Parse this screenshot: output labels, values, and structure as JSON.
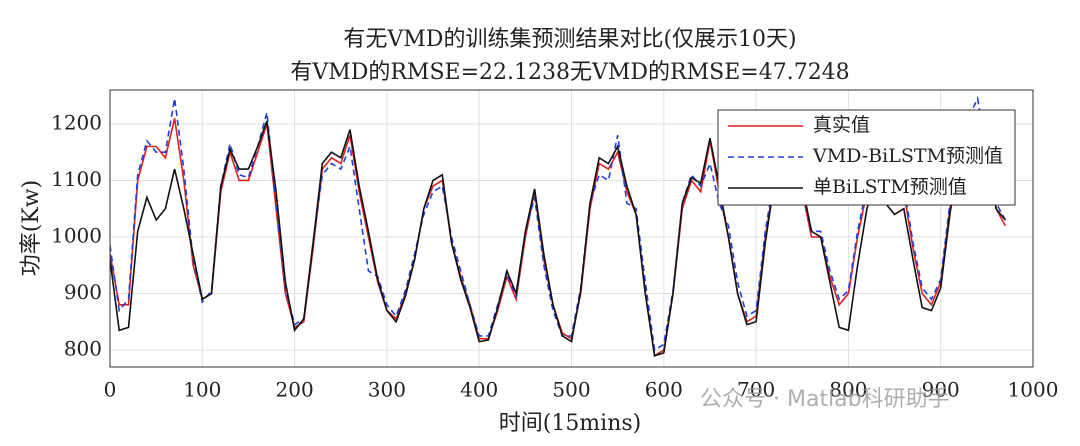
{
  "chart_data": {
    "type": "line",
    "title": "有无VMD的训练集预测结果对比(仅展示10天)",
    "subtitle": "有VMD的RMSE=22.1238无VMD的RMSE=47.7248",
    "x_label": "时间(15mins)",
    "y_label": "功率(Kw)",
    "watermark": "公众号 · Matlab科研助手",
    "xlim": [
      0,
      1000
    ],
    "ylim": [
      770,
      1260
    ],
    "xticks": [
      0,
      100,
      200,
      300,
      400,
      500,
      600,
      700,
      800,
      900,
      1000
    ],
    "yticks": [
      800,
      900,
      1000,
      1100,
      1200
    ],
    "grid": true,
    "legend": "upper right",
    "x": [
      0,
      10,
      20,
      30,
      40,
      50,
      60,
      70,
      80,
      90,
      100,
      110,
      120,
      130,
      140,
      150,
      160,
      170,
      180,
      190,
      200,
      210,
      220,
      230,
      240,
      250,
      260,
      270,
      280,
      290,
      300,
      310,
      320,
      330,
      340,
      350,
      360,
      370,
      380,
      390,
      400,
      410,
      420,
      430,
      440,
      450,
      460,
      470,
      480,
      490,
      500,
      510,
      520,
      530,
      540,
      550,
      560,
      570,
      580,
      590,
      600,
      610,
      620,
      630,
      640,
      650,
      660,
      670,
      680,
      690,
      700,
      710,
      720,
      730,
      740,
      750,
      760,
      770,
      780,
      790,
      800,
      810,
      820,
      830,
      840,
      850,
      860,
      870,
      880,
      890,
      900,
      910,
      920,
      930,
      940,
      950,
      960,
      970
    ],
    "series": [
      {
        "name": "真实值",
        "color": "#e02020",
        "dash": "solid",
        "values": [
          970,
          880,
          880,
          1100,
          1160,
          1160,
          1140,
          1210,
          1100,
          950,
          890,
          900,
          1080,
          1150,
          1100,
          1100,
          1150,
          1200,
          1050,
          900,
          840,
          850,
          980,
          1120,
          1140,
          1130,
          1180,
          1080,
          1000,
          920,
          870,
          855,
          900,
          960,
          1050,
          1090,
          1100,
          990,
          930,
          880,
          820,
          820,
          870,
          930,
          890,
          1000,
          1080,
          960,
          880,
          830,
          820,
          900,
          1050,
          1130,
          1120,
          1150,
          1080,
          1040,
          900,
          790,
          800,
          900,
          1050,
          1100,
          1080,
          1170,
          1080,
          1000,
          900,
          850,
          860,
          1000,
          1100,
          1150,
          1180,
          1080,
          1000,
          1000,
          930,
          880,
          900,
          1000,
          1080,
          1150,
          1200,
          1150,
          1080,
          980,
          900,
          880,
          920,
          1050,
          1150,
          1200,
          1220,
          1150,
          1050,
          1020
        ]
      },
      {
        "name": "VMD-BiLSTM预测值",
        "color": "#1f3fe0",
        "dash": "dashed",
        "values": [
          985,
          870,
          890,
          1110,
          1170,
          1150,
          1150,
          1245,
          1120,
          960,
          885,
          905,
          1090,
          1165,
          1110,
          1105,
          1160,
          1220,
          1060,
          910,
          845,
          855,
          990,
          1110,
          1130,
          1120,
          1160,
          1050,
          940,
          930,
          880,
          860,
          905,
          970,
          1040,
          1080,
          1090,
          1000,
          940,
          880,
          825,
          825,
          880,
          935,
          895,
          1010,
          1070,
          950,
          870,
          825,
          825,
          910,
          1060,
          1110,
          1100,
          1180,
          1060,
          1050,
          920,
          800,
          810,
          905,
          1060,
          1110,
          1090,
          1130,
          1060,
          1020,
          920,
          860,
          870,
          1010,
          1110,
          1160,
          1190,
          1090,
          1010,
          1010,
          940,
          890,
          905,
          1010,
          1090,
          1160,
          1210,
          1160,
          1090,
          990,
          910,
          890,
          925,
          1060,
          1160,
          1210,
          1245,
          1150,
          1060,
          1030
        ]
      },
      {
        "name": "单BiLSTM预测值",
        "color": "#111111",
        "dash": "solid",
        "values": [
          960,
          835,
          840,
          1010,
          1070,
          1030,
          1050,
          1120,
          1050,
          970,
          890,
          900,
          1090,
          1155,
          1120,
          1120,
          1160,
          1205,
          1080,
          920,
          835,
          855,
          990,
          1130,
          1150,
          1140,
          1190,
          1090,
          1010,
          925,
          870,
          850,
          895,
          960,
          1050,
          1100,
          1110,
          990,
          925,
          875,
          815,
          818,
          875,
          940,
          900,
          1010,
          1085,
          970,
          880,
          825,
          815,
          905,
          1060,
          1140,
          1130,
          1160,
          1090,
          1040,
          900,
          790,
          795,
          900,
          1060,
          1105,
          1095,
          1175,
          1090,
          1000,
          900,
          845,
          850,
          990,
          1100,
          1150,
          1185,
          1090,
          1010,
          1000,
          920,
          840,
          835,
          950,
          1050,
          1100,
          1060,
          1040,
          1050,
          960,
          875,
          870,
          910,
          1040,
          1150,
          1200,
          1220,
          1150,
          1050,
          1030
        ]
      }
    ]
  }
}
